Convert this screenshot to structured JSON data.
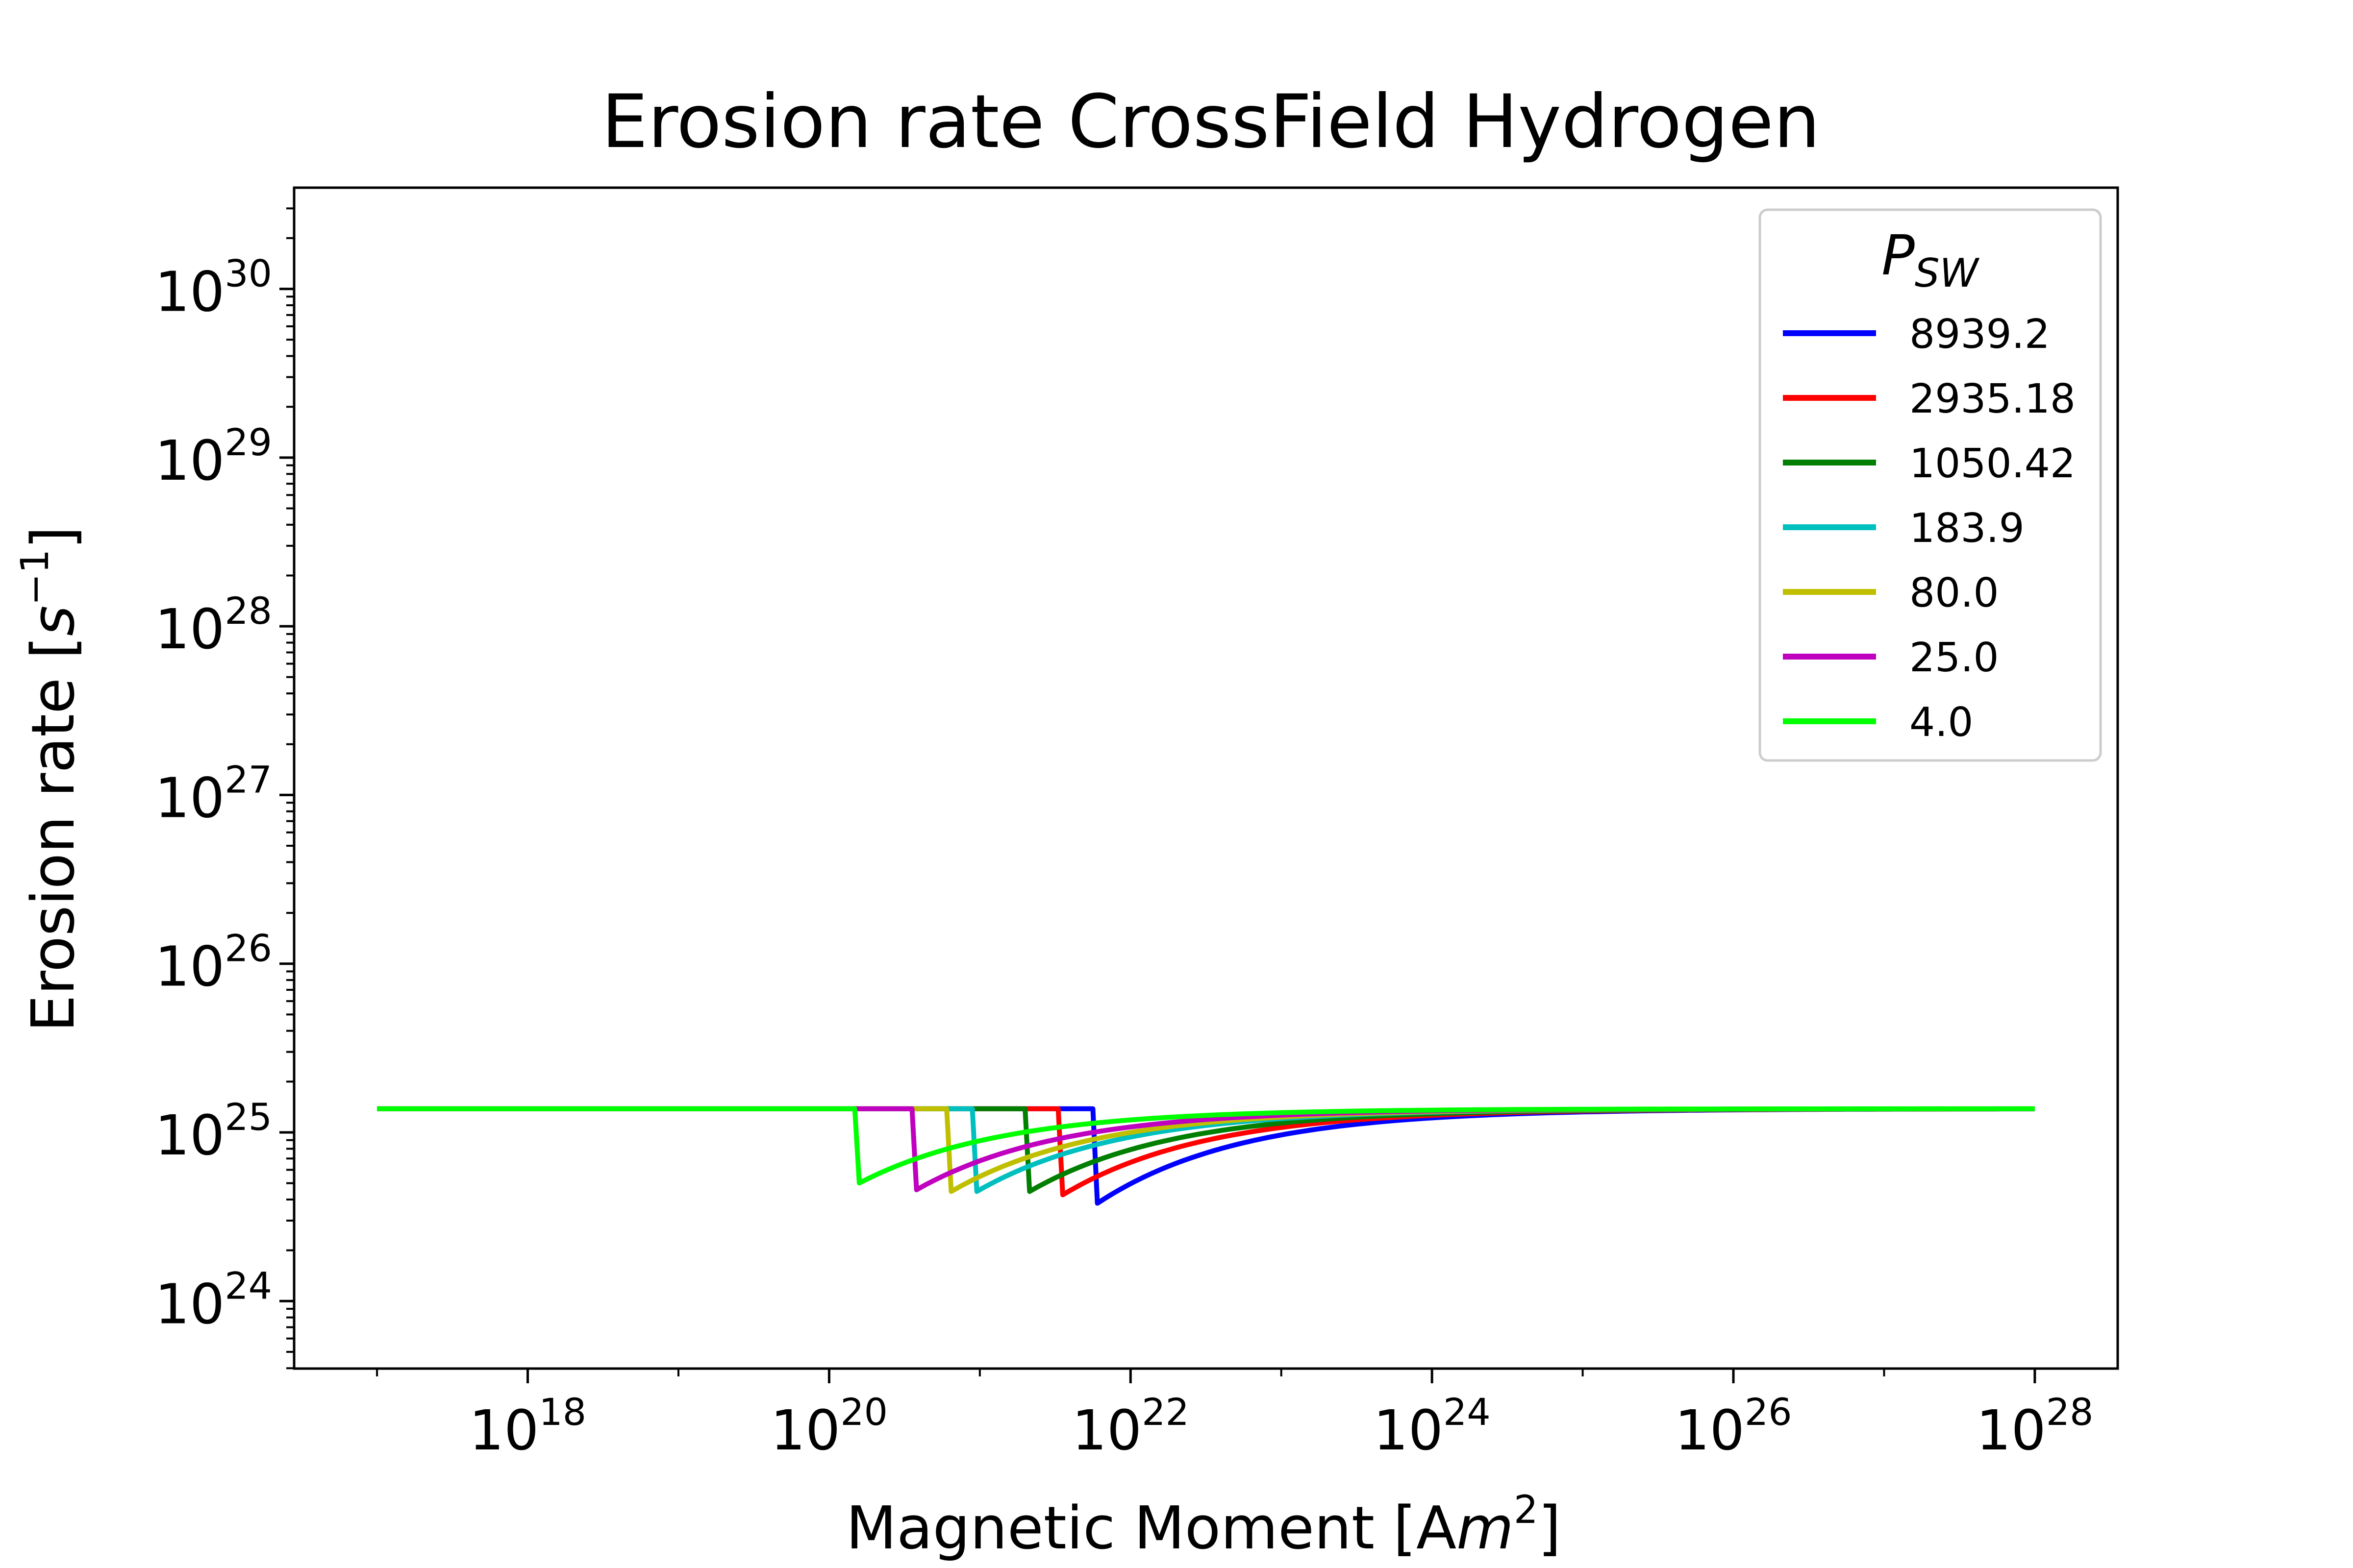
{
  "chart_data": {
    "type": "line",
    "title": "Erosion rate CrossField Hydrogen",
    "xlabel": {
      "text": "Magnetic Moment [A",
      "italic": "m",
      "sup": "2",
      "close": "]"
    },
    "ylabel": {
      "text": "Erosion rate [",
      "italic": "s",
      "sup": "−1",
      "close": "]"
    },
    "x_scale": "log",
    "y_scale": "log",
    "xlim_log10": [
      16.45,
      28.55
    ],
    "ylim_log10": [
      23.6,
      30.6
    ],
    "x_ticks": [
      {
        "base": "10",
        "exp": "18",
        "log10": 18
      },
      {
        "base": "10",
        "exp": "20",
        "log10": 20
      },
      {
        "base": "10",
        "exp": "22",
        "log10": 22
      },
      {
        "base": "10",
        "exp": "24",
        "log10": 24
      },
      {
        "base": "10",
        "exp": "26",
        "log10": 26
      },
      {
        "base": "10",
        "exp": "28",
        "log10": 28
      }
    ],
    "y_ticks": [
      {
        "base": "10",
        "exp": "24",
        "log10": 24
      },
      {
        "base": "10",
        "exp": "25",
        "log10": 25
      },
      {
        "base": "10",
        "exp": "26",
        "log10": 26
      },
      {
        "base": "10",
        "exp": "27",
        "log10": 27
      },
      {
        "base": "10",
        "exp": "28",
        "log10": 28
      },
      {
        "base": "10",
        "exp": "29",
        "log10": 29
      },
      {
        "base": "10",
        "exp": "30",
        "log10": 30
      }
    ],
    "grid": false,
    "legend": {
      "title": "P",
      "title_sub": "SW",
      "placement": "top-right"
    },
    "plateau_log10_y": 25.14,
    "x_start_log10": 17.0,
    "x_end_log10": 28.0,
    "series": [
      {
        "name": "8939.2",
        "color": "#0000ff",
        "drop_log10_x": 21.75,
        "min_log10_y": 24.58
      },
      {
        "name": "2935.18",
        "color": "#ff0000",
        "drop_log10_x": 21.52,
        "min_log10_y": 24.63
      },
      {
        "name": "1050.42",
        "color": "#007f00",
        "drop_log10_x": 21.3,
        "min_log10_y": 24.65
      },
      {
        "name": "183.9",
        "color": "#00bfbf",
        "drop_log10_x": 20.95,
        "min_log10_y": 24.65
      },
      {
        "name": "80.0",
        "color": "#bfbf00",
        "drop_log10_x": 20.78,
        "min_log10_y": 24.65
      },
      {
        "name": "25.0",
        "color": "#bf00bf",
        "drop_log10_x": 20.55,
        "min_log10_y": 24.66
      },
      {
        "name": "4.0",
        "color": "#00ff00",
        "drop_log10_x": 20.17,
        "min_log10_y": 24.7
      }
    ]
  }
}
